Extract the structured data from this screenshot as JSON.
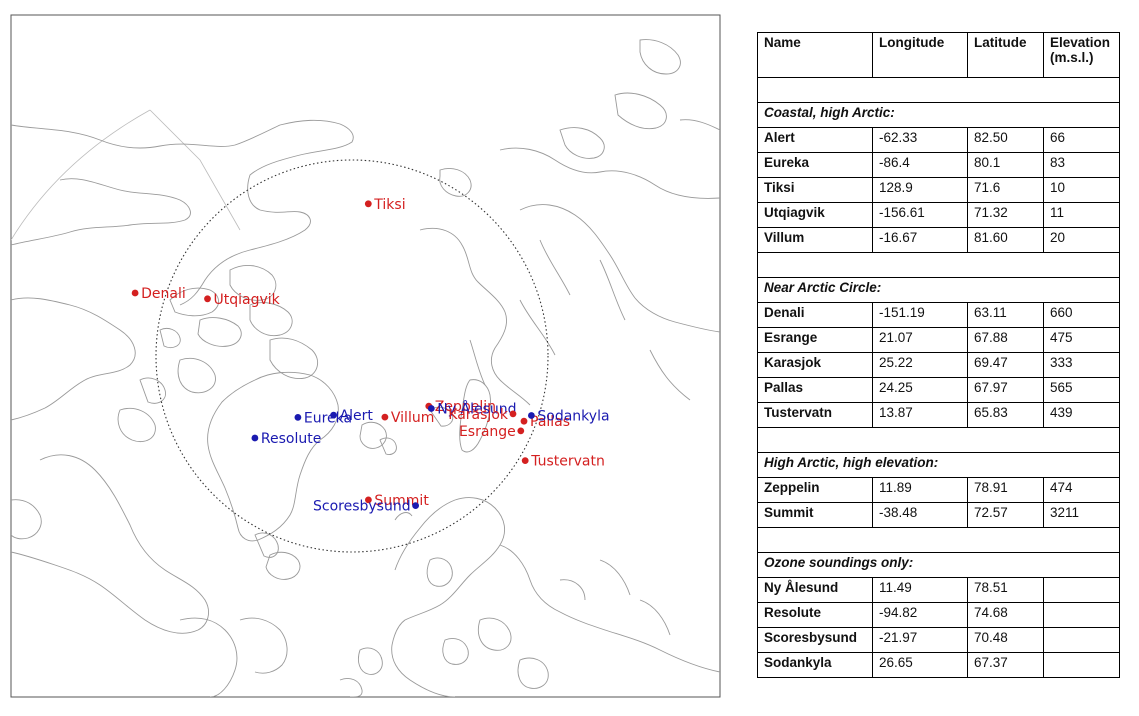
{
  "map": {
    "sites": [
      {
        "name": "Denali",
        "color": "#d42020",
        "lon": -151.19,
        "lat": 63.11,
        "label_side": "right"
      },
      {
        "name": "Utqiagvik",
        "color": "#d42020",
        "lon": -156.61,
        "lat": 71.32,
        "label_side": "right"
      },
      {
        "name": "Tiksi",
        "color": "#d42020",
        "lon": 128.9,
        "lat": 71.6,
        "label_side": "right"
      },
      {
        "name": "Resolute",
        "color": "#1a1ab0",
        "lon": -94.82,
        "lat": 74.68,
        "label_side": "right"
      },
      {
        "name": "Eureka",
        "color": "#1a1ab0",
        "lon": -86.4,
        "lat": 80.1,
        "label_side": "right"
      },
      {
        "name": "Alert",
        "color": "#1a1ab0",
        "lon": -62.33,
        "lat": 82.5,
        "label_side": "right"
      },
      {
        "name": "Villum",
        "color": "#d42020",
        "lon": -16.67,
        "lat": 81.6,
        "label_side": "right"
      },
      {
        "name": "Zeppelin",
        "color": "#d42020",
        "lon": 11.89,
        "lat": 78.91,
        "label_side": "right"
      },
      {
        "name": "Ny Ålesund",
        "color": "#1a1ab0",
        "lon": 11.49,
        "lat": 78.51,
        "label_side": "right"
      },
      {
        "name": "Summit",
        "color": "#d42020",
        "lon": -38.48,
        "lat": 72.57,
        "label_side": "right"
      },
      {
        "name": "Scoresbysund",
        "color": "#1a1ab0",
        "lon": -21.97,
        "lat": 70.48,
        "label_side": "left"
      },
      {
        "name": "Karasjok",
        "color": "#d42020",
        "lon": 25.22,
        "lat": 69.47,
        "label_side": "left"
      },
      {
        "name": "Pallas",
        "color": "#d42020",
        "lon": 24.25,
        "lat": 67.97,
        "label_side": "right"
      },
      {
        "name": "Esrange",
        "color": "#d42020",
        "lon": 21.07,
        "lat": 67.88,
        "label_side": "left"
      },
      {
        "name": "Sodankyla",
        "color": "#1a1ab0",
        "lon": 26.65,
        "lat": 67.37,
        "label_side": "right"
      },
      {
        "name": "Tustervatn",
        "color": "#d42020",
        "lon": 13.87,
        "lat": 65.83,
        "label_side": "right"
      }
    ],
    "arctic_circle_lat": 66.56,
    "coast_color": "#9a9a9a"
  },
  "table": {
    "headers": [
      "Name",
      "Longitude",
      "Latitude",
      "Elevation (m.s.l.)"
    ],
    "groups": [
      {
        "title": "Coastal, high Arctic:",
        "rows": [
          [
            "Alert",
            "-62.33",
            "82.50",
            "66"
          ],
          [
            "Eureka",
            "-86.4",
            "80.1",
            "83"
          ],
          [
            "Tiksi",
            "128.9",
            "71.6",
            "10"
          ],
          [
            "Utqiagvik",
            "-156.61",
            "71.32",
            "11"
          ],
          [
            "Villum",
            "-16.67",
            "81.60",
            "20"
          ]
        ]
      },
      {
        "title": "Near Arctic Circle:",
        "rows": [
          [
            "Denali",
            "-151.19",
            "63.11",
            "660"
          ],
          [
            "Esrange",
            "21.07",
            "67.88",
            "475"
          ],
          [
            "Karasjok",
            "25.22",
            "69.47",
            "333"
          ],
          [
            "Pallas",
            "24.25",
            "67.97",
            "565"
          ],
          [
            "Tustervatn",
            "13.87",
            "65.83",
            "439"
          ]
        ]
      },
      {
        "title": "High Arctic, high elevation:",
        "rows": [
          [
            "Zeppelin",
            "11.89",
            "78.91",
            "474"
          ],
          [
            "Summit",
            "-38.48",
            "72.57",
            "3211"
          ]
        ]
      },
      {
        "title": "Ozone soundings only:",
        "rows": [
          [
            "Ny Ålesund",
            "11.49",
            "78.51",
            ""
          ],
          [
            "Resolute",
            "-94.82",
            "74.68",
            ""
          ],
          [
            "Scoresbysund",
            "-21.97",
            "70.48",
            ""
          ],
          [
            "Sodankyla",
            "26.65",
            "67.37",
            ""
          ]
        ]
      }
    ]
  }
}
